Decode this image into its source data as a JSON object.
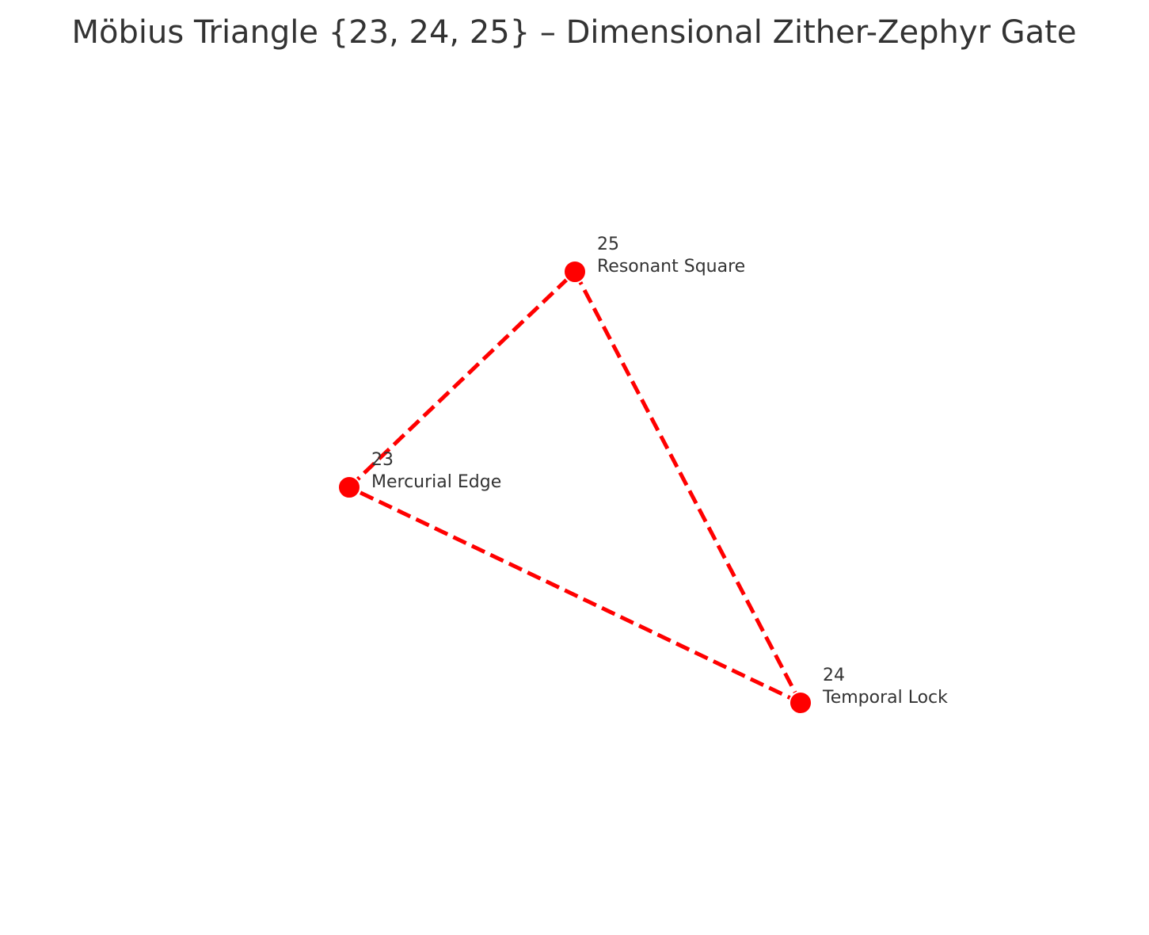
{
  "title": "Möbius Triangle {23, 24, 25} – Dimensional Zither-Zephyr Gate",
  "colors": {
    "edge": "#ff0000",
    "node": "#ff0000",
    "node_stroke": "#ffffff",
    "text": "#333333"
  },
  "nodes": [
    {
      "id": "n23",
      "number": "23",
      "name": "Mercurial Edge"
    },
    {
      "id": "n24",
      "number": "24",
      "name": "Temporal Lock"
    },
    {
      "id": "n25",
      "number": "25",
      "name": "Resonant Square"
    }
  ],
  "edges": [
    {
      "from": "n23",
      "to": "n25",
      "style": "dashed"
    },
    {
      "from": "n25",
      "to": "n24",
      "style": "dashed"
    },
    {
      "from": "n24",
      "to": "n23",
      "style": "dashed"
    }
  ]
}
